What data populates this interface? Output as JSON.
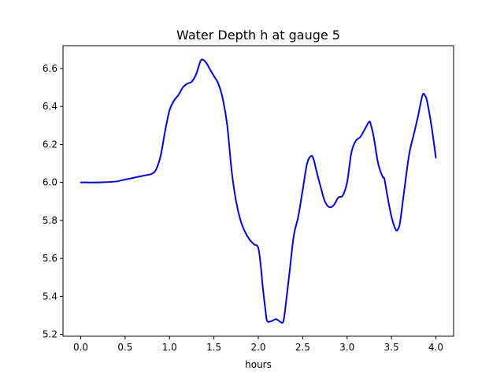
{
  "chart_data": {
    "type": "line",
    "title": "Water Depth h at gauge 5",
    "xlabel": "hours",
    "ylabel": "",
    "xlim": [
      -0.2,
      4.2
    ],
    "ylim": [
      5.19,
      6.72
    ],
    "xticks": [
      0.0,
      0.5,
      1.0,
      1.5,
      2.0,
      2.5,
      3.0,
      3.5,
      4.0
    ],
    "xtick_labels": [
      "0.0",
      "0.5",
      "1.0",
      "1.5",
      "2.0",
      "2.5",
      "3.0",
      "3.5",
      "4.0"
    ],
    "yticks": [
      5.2,
      5.4,
      5.6,
      5.8,
      6.0,
      6.2,
      6.4,
      6.6
    ],
    "ytick_labels": [
      "5.2",
      "5.4",
      "5.6",
      "5.8",
      "6.0",
      "6.2",
      "6.4",
      "6.6"
    ],
    "grid": false,
    "color": "#0000ff",
    "series": [
      {
        "x": [
          0.0,
          0.2,
          0.4,
          0.45,
          0.5,
          0.6,
          0.7,
          0.8,
          0.85,
          0.9,
          0.95,
          1.0,
          1.05,
          1.1,
          1.15,
          1.2,
          1.25,
          1.3,
          1.35,
          1.38,
          1.42,
          1.45,
          1.5,
          1.55,
          1.6,
          1.65,
          1.7,
          1.75,
          1.8,
          1.85,
          1.9,
          1.95,
          2.0,
          2.03,
          2.05,
          2.08,
          2.1,
          2.15,
          2.2,
          2.25,
          2.28,
          2.3,
          2.35,
          2.4,
          2.45,
          2.5,
          2.55,
          2.6,
          2.63,
          2.65,
          2.7,
          2.75,
          2.8,
          2.85,
          2.9,
          2.95,
          3.0,
          3.05,
          3.1,
          3.15,
          3.2,
          3.25,
          3.27,
          3.3,
          3.35,
          3.4,
          3.42,
          3.45,
          3.5,
          3.55,
          3.58,
          3.6,
          3.65,
          3.7,
          3.75,
          3.8,
          3.85,
          3.88,
          3.9,
          3.95,
          4.0
        ],
        "y": [
          6.0,
          6.0,
          6.005,
          6.01,
          6.015,
          6.025,
          6.035,
          6.045,
          6.07,
          6.14,
          6.27,
          6.38,
          6.43,
          6.46,
          6.5,
          6.52,
          6.53,
          6.57,
          6.64,
          6.645,
          6.625,
          6.6,
          6.56,
          6.52,
          6.44,
          6.3,
          6.06,
          5.9,
          5.8,
          5.74,
          5.7,
          5.675,
          5.655,
          5.55,
          5.45,
          5.33,
          5.27,
          5.27,
          5.28,
          5.265,
          5.265,
          5.32,
          5.52,
          5.72,
          5.82,
          5.96,
          6.1,
          6.14,
          6.11,
          6.07,
          5.98,
          5.9,
          5.87,
          5.88,
          5.92,
          5.93,
          6.0,
          6.16,
          6.22,
          6.24,
          6.28,
          6.32,
          6.3,
          6.24,
          6.1,
          6.03,
          6.02,
          5.94,
          5.82,
          5.75,
          5.76,
          5.8,
          5.98,
          6.15,
          6.25,
          6.35,
          6.46,
          6.455,
          6.43,
          6.3,
          6.13
        ]
      }
    ]
  }
}
